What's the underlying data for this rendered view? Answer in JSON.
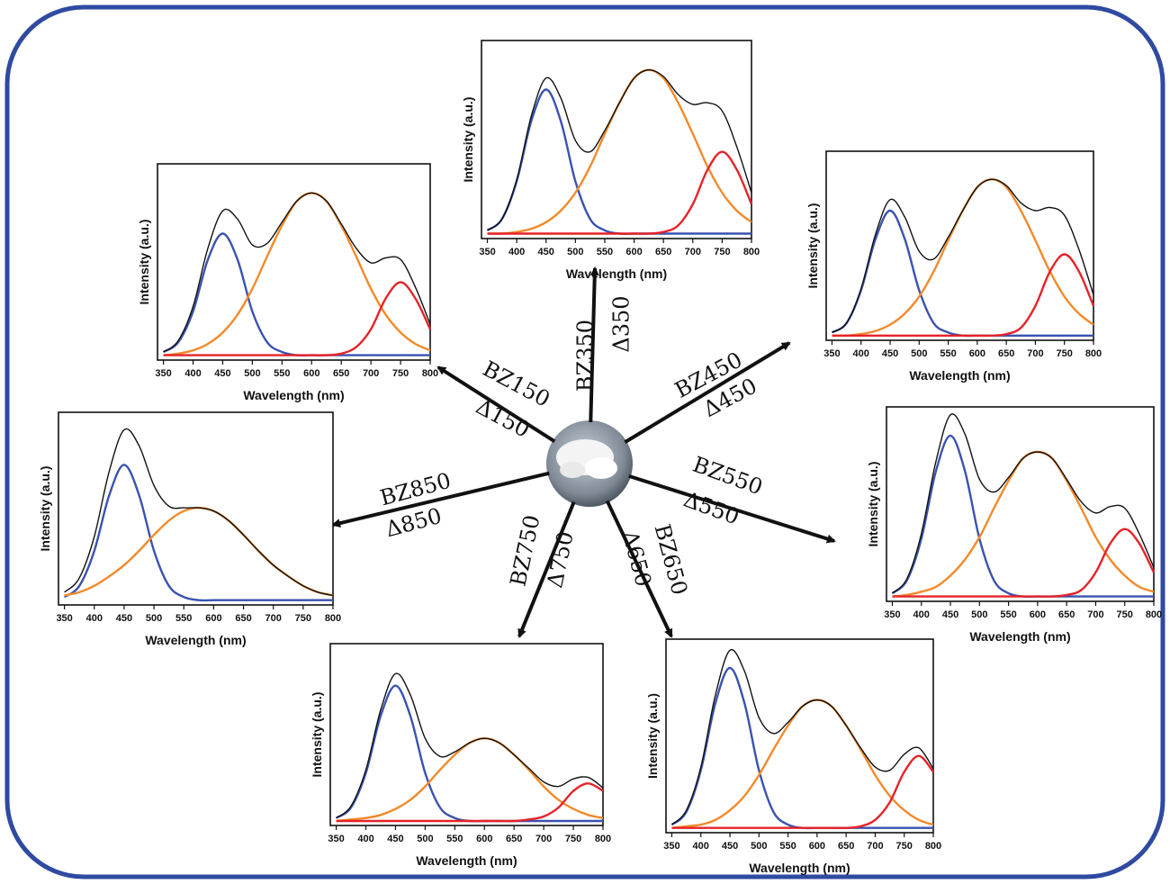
{
  "chart_data": [
    {
      "type": "line",
      "xlabel": "Wavelength (nm)",
      "ylabel": "Intensity (a.u.)",
      "xlim": [
        340,
        800
      ],
      "ylim": [
        -3,
        118
      ],
      "xticks": [
        350,
        400,
        450,
        500,
        550,
        600,
        650,
        700,
        750,
        800
      ],
      "x": [
        350,
        375,
        400,
        425,
        450,
        475,
        500,
        525,
        550,
        575,
        600,
        625,
        650,
        675,
        700,
        725,
        750,
        775,
        800
      ],
      "series": [
        {
          "color": "#3a52b0",
          "values": [
            2,
            9,
            32,
            69,
            88,
            69,
            32,
            9,
            2,
            0,
            0,
            0,
            0,
            0,
            0,
            0,
            0,
            0,
            0
          ]
        },
        {
          "color": "#f28a2a",
          "values": [
            0,
            0,
            1,
            3,
            7,
            14,
            25,
            41,
            61,
            80,
            95,
            100,
            95,
            80,
            61,
            41,
            25,
            14,
            7
          ]
        },
        {
          "color": "#e62329",
          "values": [
            0,
            0,
            0,
            0,
            0,
            0,
            0,
            0,
            0,
            0,
            0,
            0,
            1,
            5,
            18,
            39,
            50,
            39,
            18
          ]
        },
        {
          "color": "#111111",
          "values": [
            2,
            9,
            33,
            72,
            95,
            83,
            57,
            50,
            63,
            80,
            95,
            100,
            96,
            85,
            79,
            80,
            75,
            53,
            25
          ]
        }
      ]
    },
    {
      "type": "line",
      "xlabel": "Wavelength (nm)",
      "ylabel": "Intensity (a.u.)",
      "xlim": [
        340,
        800
      ],
      "ylim": [
        -3,
        118
      ],
      "xticks": [
        350,
        400,
        450,
        500,
        550,
        600,
        650,
        700,
        750,
        800
      ],
      "x": [
        350,
        375,
        400,
        425,
        450,
        475,
        500,
        525,
        550,
        575,
        600,
        625,
        650,
        675,
        700,
        725,
        750,
        775,
        800
      ],
      "series": [
        {
          "color": "#3a52b0",
          "values": [
            2,
            8,
            27,
            59,
            75,
            59,
            27,
            8,
            2,
            0,
            0,
            0,
            0,
            0,
            0,
            0,
            0,
            0,
            0
          ]
        },
        {
          "color": "#f28a2a",
          "values": [
            0,
            1,
            3,
            7,
            14,
            25,
            41,
            61,
            80,
            95,
            100,
            95,
            80,
            61,
            41,
            25,
            14,
            7,
            3
          ]
        },
        {
          "color": "#e62329",
          "values": [
            0,
            0,
            0,
            0,
            0,
            0,
            0,
            0,
            0,
            0,
            0,
            0,
            1,
            5,
            16,
            35,
            45,
            35,
            16
          ]
        },
        {
          "color": "#111111",
          "values": [
            2,
            9,
            30,
            66,
            89,
            84,
            68,
            69,
            82,
            95,
            100,
            95,
            81,
            66,
            57,
            60,
            59,
            42,
            19
          ]
        }
      ]
    },
    {
      "type": "line",
      "xlabel": "Wavelength (nm)",
      "ylabel": "Intensity (a.u.)",
      "xlim": [
        340,
        800
      ],
      "ylim": [
        -3,
        118
      ],
      "xticks": [
        350,
        400,
        450,
        500,
        550,
        600,
        650,
        700,
        750,
        800
      ],
      "x": [
        350,
        375,
        400,
        425,
        450,
        475,
        500,
        525,
        550,
        575,
        600,
        625,
        650,
        675,
        700,
        725,
        750,
        775,
        800
      ],
      "series": [
        {
          "color": "#3a52b0",
          "values": [
            2,
            8,
            29,
            62,
            80,
            62,
            29,
            8,
            2,
            0,
            0,
            0,
            0,
            0,
            0,
            0,
            0,
            0,
            0
          ]
        },
        {
          "color": "#f28a2a",
          "values": [
            0,
            0,
            1,
            3,
            7,
            14,
            25,
            41,
            61,
            80,
            95,
            100,
            95,
            80,
            61,
            41,
            25,
            14,
            7
          ]
        },
        {
          "color": "#e62329",
          "values": [
            0,
            0,
            0,
            0,
            0,
            0,
            0,
            0,
            0,
            0,
            0,
            0,
            1,
            5,
            19,
            41,
            52,
            41,
            19
          ]
        },
        {
          "color": "#111111",
          "values": [
            2,
            8,
            30,
            65,
            87,
            76,
            54,
            49,
            63,
            80,
            95,
            100,
            96,
            85,
            80,
            82,
            77,
            55,
            26
          ]
        }
      ]
    },
    {
      "type": "line",
      "xlabel": "Wavelength (nm)",
      "ylabel": "Intensity (a.u.)",
      "xlim": [
        340,
        800
      ],
      "ylim": [
        -3,
        118
      ],
      "xticks": [
        350,
        400,
        450,
        500,
        550,
        600,
        650,
        700,
        750,
        800
      ],
      "x": [
        350,
        375,
        400,
        425,
        450,
        475,
        500,
        525,
        550,
        575,
        600,
        625,
        650,
        675,
        700,
        725,
        750,
        775,
        800
      ],
      "series": [
        {
          "color": "#3a52b0",
          "values": [
            2,
            9,
            31,
            66,
            85,
            66,
            31,
            9,
            2,
            0,
            0,
            0,
            0,
            0,
            0,
            0,
            0,
            0,
            0
          ]
        },
        {
          "color": "#f28a2a",
          "values": [
            3,
            5,
            9,
            15,
            22,
            31,
            41,
            50,
            56,
            58,
            56,
            50,
            41,
            31,
            22,
            15,
            9,
            5,
            3
          ]
        },
        {
          "color": "#111111",
          "values": [
            5,
            14,
            40,
            81,
            107,
            97,
            72,
            59,
            58,
            58,
            56,
            50,
            41,
            31,
            22,
            15,
            9,
            5,
            3
          ]
        }
      ]
    },
    {
      "type": "line",
      "xlabel": "Wavelength (nm)",
      "ylabel": "Intensity (a.u.)",
      "xlim": [
        340,
        800
      ],
      "ylim": [
        -3,
        118
      ],
      "xticks": [
        350,
        400,
        450,
        500,
        550,
        600,
        650,
        700,
        750,
        800
      ],
      "x": [
        350,
        375,
        400,
        425,
        450,
        475,
        500,
        525,
        550,
        575,
        600,
        625,
        650,
        675,
        700,
        725,
        750,
        775,
        800
      ],
      "series": [
        {
          "color": "#3a52b0",
          "values": [
            2,
            10,
            36,
            78,
            100,
            78,
            36,
            10,
            2,
            0,
            0,
            0,
            0,
            0,
            0,
            0,
            0,
            0,
            0
          ]
        },
        {
          "color": "#f28a2a",
          "values": [
            0,
            1,
            3,
            6,
            13,
            23,
            37,
            55,
            72,
            86,
            90,
            86,
            72,
            55,
            37,
            23,
            13,
            6,
            3
          ]
        },
        {
          "color": "#e62329",
          "values": [
            0,
            0,
            0,
            0,
            0,
            0,
            0,
            0,
            0,
            0,
            0,
            0,
            1,
            4,
            15,
            33,
            42,
            33,
            15
          ]
        },
        {
          "color": "#111111",
          "values": [
            2,
            11,
            39,
            84,
            113,
            101,
            73,
            65,
            74,
            86,
            90,
            86,
            73,
            59,
            52,
            56,
            55,
            39,
            18
          ]
        }
      ]
    },
    {
      "type": "line",
      "xlabel": "Wavelength (nm)",
      "ylabel": "Intensity (a.u.)",
      "xlim": [
        340,
        800
      ],
      "ylim": [
        -3,
        118
      ],
      "xticks": [
        350,
        400,
        450,
        500,
        550,
        600,
        650,
        700,
        750,
        800
      ],
      "x": [
        350,
        375,
        400,
        425,
        450,
        475,
        500,
        525,
        550,
        575,
        600,
        625,
        650,
        675,
        700,
        725,
        750,
        775,
        800
      ],
      "series": [
        {
          "color": "#3a52b0",
          "values": [
            2,
            9,
            32,
            70,
            90,
            70,
            32,
            9,
            2,
            0,
            0,
            0,
            0,
            0,
            0,
            0,
            0,
            0,
            0
          ]
        },
        {
          "color": "#f28a2a",
          "values": [
            0,
            1,
            2,
            4,
            8,
            14,
            23,
            34,
            44,
            52,
            55,
            52,
            44,
            34,
            23,
            14,
            8,
            4,
            2
          ]
        },
        {
          "color": "#e62329",
          "values": [
            0,
            0,
            0,
            0,
            0,
            0,
            0,
            0,
            0,
            0,
            0,
            0,
            0,
            1,
            3,
            9,
            20,
            25,
            20
          ]
        },
        {
          "color": "#111111",
          "values": [
            2,
            10,
            34,
            74,
            98,
            84,
            55,
            43,
            46,
            52,
            55,
            52,
            44,
            35,
            26,
            23,
            28,
            29,
            22
          ]
        }
      ]
    },
    {
      "type": "line",
      "xlabel": "Wavelength (nm)",
      "ylabel": "Intensity (a.u.)",
      "xlim": [
        340,
        800
      ],
      "ylim": [
        -3,
        118
      ],
      "xticks": [
        350,
        400,
        450,
        500,
        550,
        600,
        650,
        700,
        750,
        800
      ],
      "x": [
        350,
        375,
        400,
        425,
        450,
        475,
        500,
        525,
        550,
        575,
        600,
        625,
        650,
        675,
        700,
        725,
        750,
        775,
        800
      ],
      "series": [
        {
          "color": "#3a52b0",
          "values": [
            2,
            10,
            36,
            78,
            100,
            78,
            36,
            10,
            2,
            0,
            0,
            0,
            0,
            0,
            0,
            0,
            0,
            0,
            0
          ]
        },
        {
          "color": "#f28a2a",
          "values": [
            0,
            1,
            2,
            5,
            11,
            20,
            33,
            49,
            64,
            76,
            80,
            76,
            64,
            49,
            33,
            20,
            11,
            5,
            2
          ]
        },
        {
          "color": "#e62329",
          "values": [
            0,
            0,
            0,
            0,
            0,
            0,
            0,
            0,
            0,
            0,
            0,
            0,
            0,
            1,
            5,
            16,
            35,
            45,
            35
          ]
        },
        {
          "color": "#111111",
          "values": [
            2,
            11,
            38,
            83,
            111,
            98,
            69,
            59,
            66,
            76,
            80,
            76,
            64,
            50,
            38,
            36,
            46,
            50,
            37
          ]
        }
      ]
    }
  ],
  "arrows": [
    {
      "sample": "BZ350",
      "delta": "Δ350"
    },
    {
      "sample": "BZ150",
      "delta": "Δ150"
    },
    {
      "sample": "BZ450",
      "delta": "Δ450"
    },
    {
      "sample": "BZ850",
      "delta": "Δ850"
    },
    {
      "sample": "BZ550",
      "delta": "Δ550"
    },
    {
      "sample": "BZ750",
      "delta": "Δ750"
    },
    {
      "sample": "BZ650",
      "delta": "Δ650"
    }
  ]
}
